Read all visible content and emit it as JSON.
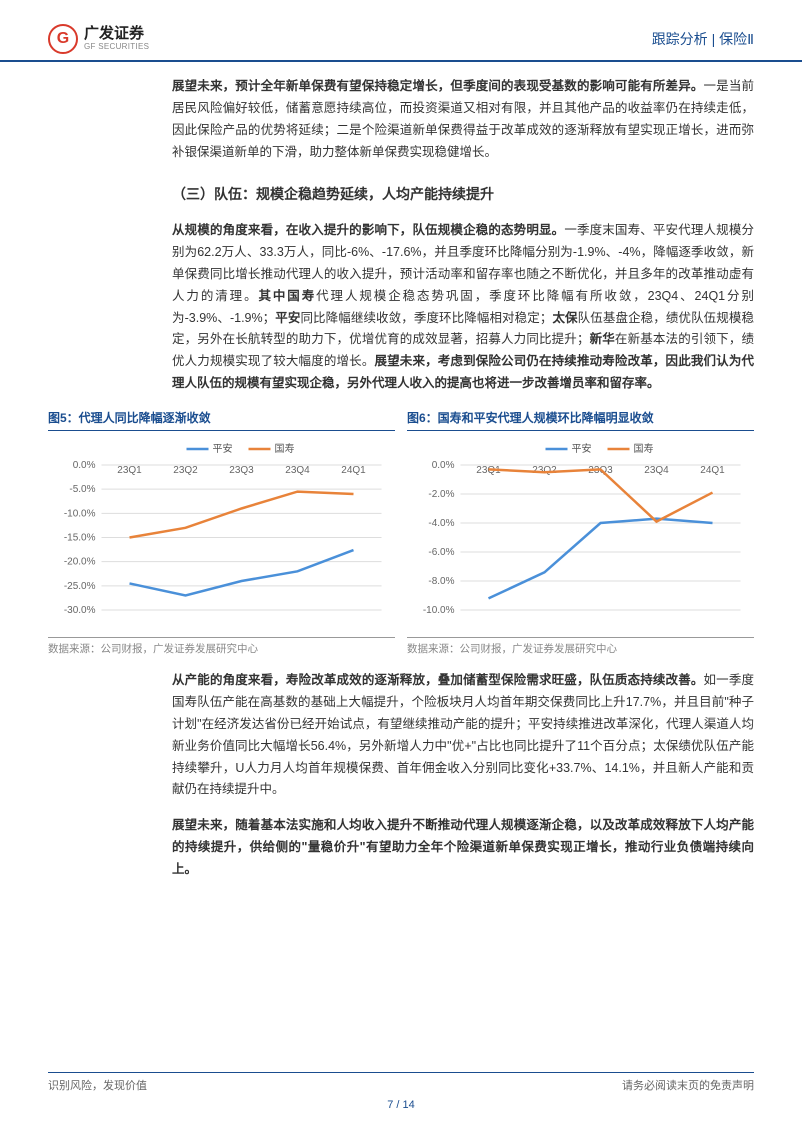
{
  "header": {
    "logo_cn": "广发证券",
    "logo_en": "GF SECURITIES",
    "right": "跟踪分析 | 保险Ⅱ"
  },
  "body": {
    "p1_bold": "展望未来，预计全年新单保费有望保持稳定增长，但季度间的表现受基数的影响可能有所差异。",
    "p1_rest": "一是当前居民风险偏好较低，储蓄意愿持续高位，而投资渠道又相对有限，并且其他产品的收益率仍在持续走低，因此保险产品的优势将延续；二是个险渠道新单保费得益于改革成效的逐渐释放有望实现正增长，进而弥补银保渠道新单的下滑，助力整体新单保费实现稳健增长。",
    "section3_title": "（三）队伍：规模企稳趋势延续，人均产能持续提升",
    "p2_bold1": "从规模的角度来看，在收入提升的影响下，队伍规模企稳的态势明显。",
    "p2_mid": "一季度末国寿、平安代理人规模分别为62.2万人、33.3万人，同比-6%、-17.6%，并且季度环比降幅分别为-1.9%、-4%，降幅逐季收敛，新单保费同比增长推动代理人的收入提升，预计活动率和留存率也随之不断优化，并且多年的改革推动虚有人力的清理。",
    "p2_bold2": "其中国寿",
    "p2_mid2": "代理人规模企稳态势巩固，季度环比降幅有所收敛，23Q4、24Q1分别为-3.9%、-1.9%；",
    "p2_bold3": "平安",
    "p2_mid3": "同比降幅继续收敛，季度环比降幅相对稳定；",
    "p2_bold4": "太保",
    "p2_mid4": "队伍基盘企稳，绩优队伍规模稳定，另外在长航转型的助力下，优增优育的成效显著，招募人力同比提升；",
    "p2_bold5": "新华",
    "p2_mid5": "在新基本法的引领下，绩优人力规模实现了较大幅度的增长。",
    "p2_bold6": "展望未来，考虑到保险公司仍在持续推动寿险改革，因此我们认为代理人队伍的规模有望实现企稳，另外代理人收入的提高也将进一步改善增员率和留存率。",
    "p3_bold": "从产能的角度来看，寿险改革成效的逐渐释放，叠加储蓄型保险需求旺盛，队伍质态持续改善。",
    "p3_rest": "如一季度国寿队伍产能在高基数的基础上大幅提升，个险板块月人均首年期交保费同比上升17.7%，并且目前\"种子计划\"在经济发达省份已经开始试点，有望继续推动产能的提升；平安持续推进改革深化，代理人渠道人均新业务价值同比大幅增长56.4%，另外新增人力中\"优+\"占比也同比提升了11个百分点；太保绩优队伍产能持续攀升，U人力月人均首年规模保费、首年佣金收入分别同比变化+33.7%、14.1%，并且新人产能和贡献仍在持续提升中。",
    "p4": "展望未来，随着基本法实施和人均收入提升不断推动代理人规模逐渐企稳，以及改革成效释放下人均产能的持续提升，供给侧的\"量稳价升\"有望助力全年个险渠道新单保费实现正增长，推动行业负债端持续向上。"
  },
  "chart5": {
    "title": "图5：代理人同比降幅逐渐收敛",
    "type": "line",
    "categories": [
      "23Q1",
      "23Q2",
      "23Q3",
      "23Q4",
      "24Q1"
    ],
    "series": [
      {
        "name": "平安",
        "color": "#4a90d9",
        "values": [
          -24.5,
          -27.0,
          -24.0,
          -22.0,
          -17.6
        ]
      },
      {
        "name": "国寿",
        "color": "#e8833a",
        "values": [
          -15.0,
          -13.0,
          -9.0,
          -5.5,
          -6.0
        ]
      }
    ],
    "ylim": [
      -30,
      0
    ],
    "ytick_step": 5,
    "ytick_format": "percent",
    "grid_color": "#dddddd",
    "label_fontsize": 10,
    "source": "数据来源：公司财报，广发证券发展研究中心"
  },
  "chart6": {
    "title": "图6：国寿和平安代理人规模环比降幅明显收敛",
    "type": "line",
    "categories": [
      "23Q1",
      "23Q2",
      "23Q3",
      "23Q4",
      "24Q1"
    ],
    "series": [
      {
        "name": "平安",
        "color": "#4a90d9",
        "values": [
          -9.2,
          -7.4,
          -4.0,
          -3.7,
          -4.0
        ]
      },
      {
        "name": "国寿",
        "color": "#e8833a",
        "values": [
          -0.3,
          -0.5,
          -0.3,
          -3.9,
          -1.9
        ]
      }
    ],
    "ylim": [
      -10,
      0
    ],
    "ytick_step": 2,
    "ytick_format": "percent",
    "grid_color": "#dddddd",
    "label_fontsize": 10,
    "source": "数据来源：公司财报，广发证券发展研究中心"
  },
  "footer": {
    "left": "识别风险，发现价值",
    "right": "请务必阅读末页的免责声明",
    "page": "7 / 14"
  }
}
